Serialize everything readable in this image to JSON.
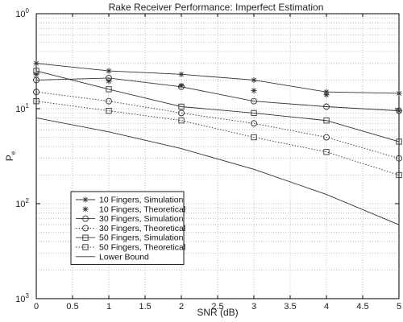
{
  "chart_data": {
    "type": "line",
    "title": "Rake Receiver Performance: Imperfect Estimation",
    "xlabel": "SNR (dB)",
    "ylabel": {
      "main": "P",
      "sub": "e"
    },
    "x": [
      0,
      1,
      2,
      3,
      4,
      5
    ],
    "xlim": [
      0,
      5
    ],
    "xticks": [
      "0",
      "0.5",
      "1",
      "1.5",
      "2",
      "2.5",
      "3",
      "3.5",
      "4",
      "4.5",
      "5"
    ],
    "ylim": [
      0.001,
      1
    ],
    "yscale": "log",
    "yticks": [
      {
        "base": "10",
        "exp": "0"
      },
      {
        "base": "10",
        "exp": "1"
      },
      {
        "base": "10",
        "exp": "2"
      },
      {
        "base": "10",
        "exp": "3"
      }
    ],
    "grid": true,
    "legend_position": "lower-left",
    "series": [
      {
        "name": "10 Fingers, Simulation",
        "marker": "star",
        "line": "solid",
        "values": [
          0.3,
          0.25,
          0.23,
          0.2,
          0.15,
          0.145
        ]
      },
      {
        "name": "10 Fingers, Theoretical",
        "marker": "star",
        "line": "none",
        "values": [
          0.23,
          0.195,
          0.175,
          0.155,
          0.14,
          0.095
        ]
      },
      {
        "name": "30 Fingers, Simulation",
        "marker": "circle",
        "line": "solid",
        "values": [
          0.2,
          0.21,
          0.17,
          0.12,
          0.105,
          0.095
        ]
      },
      {
        "name": "30 Fingers, Theoretical",
        "marker": "circle",
        "line": "dotted",
        "values": [
          0.15,
          0.12,
          0.09,
          0.07,
          0.05,
          0.03
        ]
      },
      {
        "name": "50 Fingers, Simulation",
        "marker": "square",
        "line": "solid",
        "values": [
          0.25,
          0.16,
          0.105,
          0.09,
          0.075,
          0.045
        ]
      },
      {
        "name": "50 Fingers, Theoretical",
        "marker": "square",
        "line": "dotted",
        "values": [
          0.12,
          0.095,
          0.075,
          0.05,
          0.035,
          0.02
        ]
      },
      {
        "name": "Lower Bound",
        "marker": "none",
        "line": "solid",
        "values": [
          0.08,
          0.057,
          0.038,
          0.023,
          0.0125,
          0.006
        ]
      }
    ],
    "colors": {
      "line": "#333333",
      "grid": "#b0b0b0",
      "axes": "#000000"
    }
  }
}
